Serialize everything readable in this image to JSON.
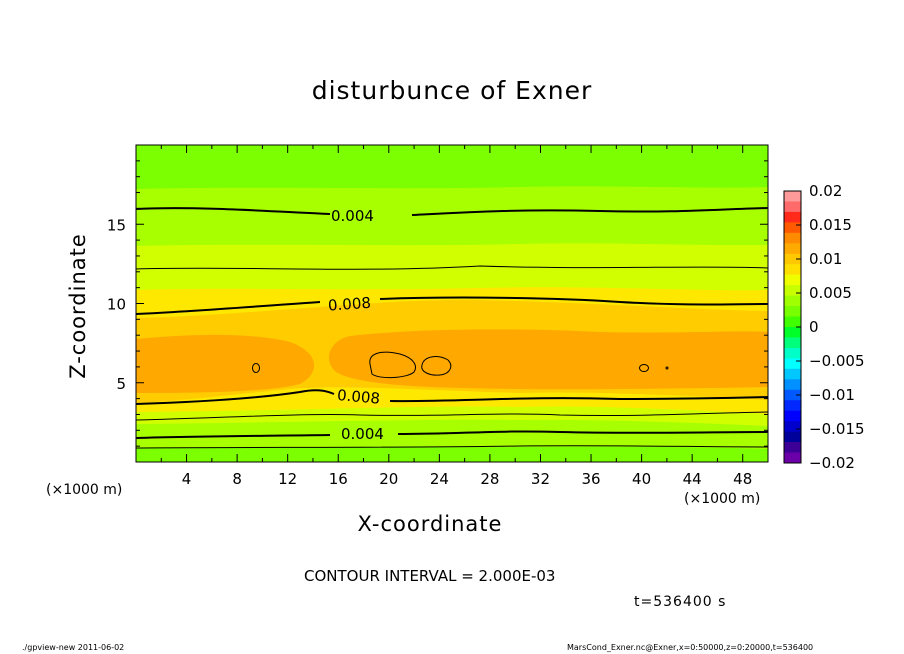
{
  "figure": {
    "title": "disturbunce of Exner",
    "xlabel": "X-coordinate",
    "ylabel": "Z-coordinate",
    "x_unit_label": "(×1000 m)",
    "contour_interval_text": "CONTOUR INTERVAL = 2.000E-03",
    "time_text": "t=536400 s",
    "footer_left": "./gpview-new  2011-06-02",
    "footer_right": "MarsCond_Exner.nc@Exner,x=0:50000,z=0:20000,t=536400"
  },
  "chart_data": {
    "type": "heatmap",
    "title": "disturbunce of Exner",
    "xlabel": "X-coordinate",
    "ylabel": "Z-coordinate",
    "x_unit": "×1000 m",
    "xlim": [
      0,
      50
    ],
    "ylim": [
      0,
      20
    ],
    "x_ticks": [
      4,
      8,
      12,
      16,
      20,
      24,
      28,
      32,
      36,
      40,
      44,
      48
    ],
    "y_ticks": [
      5,
      10,
      15
    ],
    "contour_interval": 0.002,
    "contour_labels": [
      "0.004",
      "0.008",
      "0.008",
      "0.004"
    ],
    "colorbar": {
      "range": [
        -0.02,
        0.02
      ],
      "tick_labels": [
        "0.02",
        "0.015",
        "0.01",
        "0.005",
        "0",
        "−0.005",
        "−0.01",
        "−0.015",
        "−0.02"
      ],
      "colors": [
        "#ff9a9a",
        "#ff6a6a",
        "#ff2a1a",
        "#ff5a00",
        "#ff8c00",
        "#ffaa00",
        "#ffc800",
        "#ffe000",
        "#f0ff00",
        "#c8ff00",
        "#a0ff00",
        "#78ff00",
        "#40ff00",
        "#00ff28",
        "#00ff7a",
        "#00ffc8",
        "#00ffff",
        "#00c8ff",
        "#0090ff",
        "#005aff",
        "#0028ff",
        "#0000ff",
        "#0000cc",
        "#00009a",
        "#3c0096",
        "#6c00a8"
      ]
    },
    "field_colors": {
      "c_le_0002": "#7cff00",
      "c_0002_0004": "#a8ff00",
      "c_0004_0006": "#d2ff00",
      "c_0006_0008": "#ffe800",
      "c_0008_0010": "#ffcc00",
      "c_ge_0010": "#ffa800"
    }
  }
}
